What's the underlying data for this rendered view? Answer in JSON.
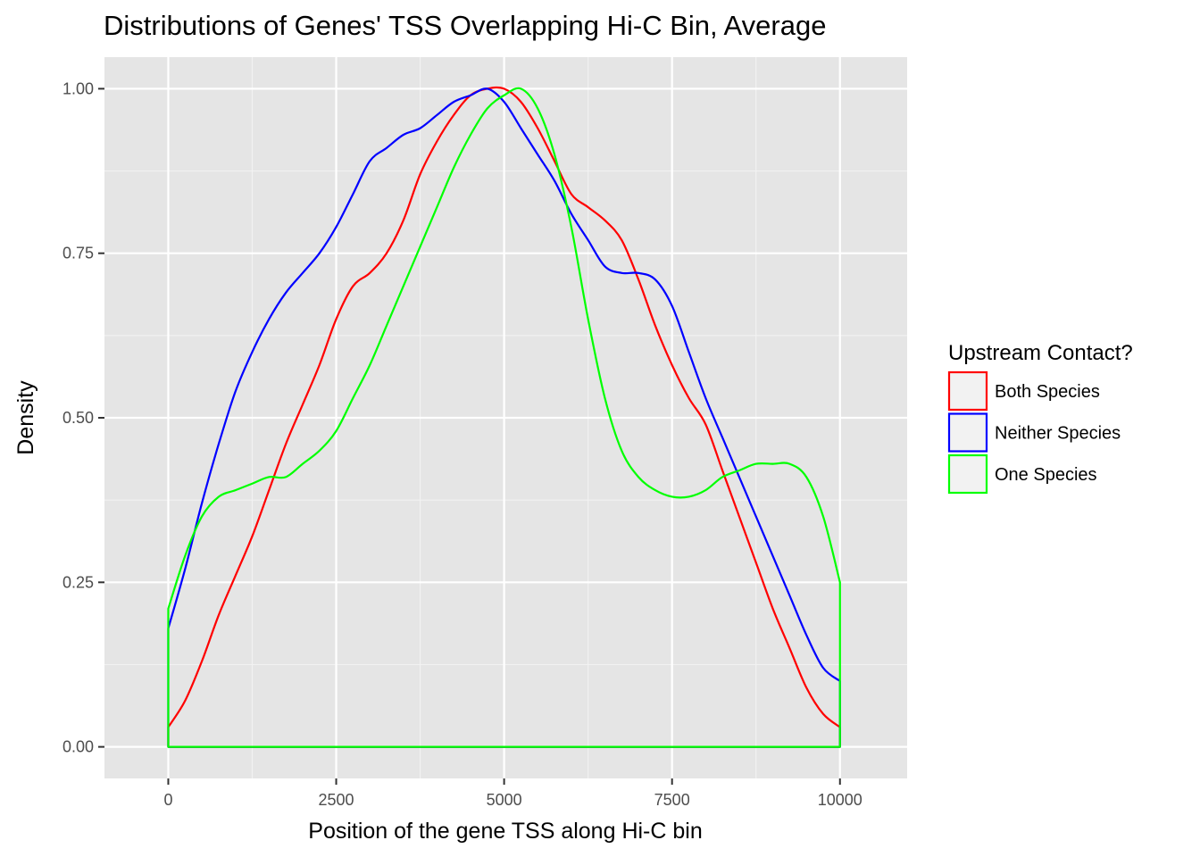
{
  "chart_data": {
    "type": "line",
    "title": "Distributions of Genes' TSS Overlapping Hi-C Bin, Average",
    "xlabel": "Position of the gene TSS along Hi-C bin",
    "ylabel": "Density",
    "xlim": [
      -950,
      11000
    ],
    "ylim": [
      -0.048,
      1.048
    ],
    "x_ticks": [
      0,
      2500,
      5000,
      7500,
      10000
    ],
    "x_tick_labels": [
      "0",
      "2500",
      "5000",
      "7500",
      "10000"
    ],
    "y_ticks": [
      0,
      0.25,
      0.5,
      0.75,
      1.0
    ],
    "y_tick_labels": [
      "0.00",
      "0.25",
      "0.50",
      "0.75",
      "1.00"
    ],
    "grid": true,
    "background": "#e5e5e5",
    "legend": {
      "title": "Upstream Contact?",
      "position": "right"
    },
    "series": [
      {
        "name": "Both Species",
        "color": "#ff0000",
        "x": [
          0,
          250,
          500,
          750,
          1000,
          1250,
          1500,
          1750,
          2000,
          2250,
          2500,
          2750,
          3000,
          3250,
          3500,
          3750,
          4000,
          4250,
          4500,
          4750,
          5000,
          5250,
          5500,
          5750,
          6000,
          6250,
          6500,
          6750,
          7000,
          7250,
          7500,
          7750,
          8000,
          8250,
          8500,
          8750,
          9000,
          9250,
          9500,
          9750,
          10000
        ],
        "y": [
          0.03,
          0.07,
          0.13,
          0.2,
          0.26,
          0.32,
          0.39,
          0.46,
          0.52,
          0.58,
          0.65,
          0.7,
          0.72,
          0.75,
          0.8,
          0.87,
          0.92,
          0.96,
          0.99,
          1.0,
          1.0,
          0.98,
          0.94,
          0.89,
          0.84,
          0.82,
          0.8,
          0.77,
          0.71,
          0.64,
          0.58,
          0.53,
          0.49,
          0.42,
          0.35,
          0.28,
          0.21,
          0.15,
          0.09,
          0.05,
          0.03
        ]
      },
      {
        "name": "Neither Species",
        "color": "#0000ff",
        "x": [
          0,
          250,
          500,
          750,
          1000,
          1250,
          1500,
          1750,
          2000,
          2250,
          2500,
          2750,
          3000,
          3250,
          3500,
          3750,
          4000,
          4250,
          4500,
          4750,
          5000,
          5250,
          5500,
          5750,
          6000,
          6250,
          6500,
          6750,
          7000,
          7250,
          7500,
          7750,
          8000,
          8250,
          8500,
          8750,
          9000,
          9250,
          9500,
          9750,
          10000
        ],
        "y": [
          0.18,
          0.27,
          0.37,
          0.46,
          0.54,
          0.6,
          0.65,
          0.69,
          0.72,
          0.75,
          0.79,
          0.84,
          0.89,
          0.91,
          0.93,
          0.94,
          0.96,
          0.98,
          0.99,
          1.0,
          0.98,
          0.94,
          0.9,
          0.86,
          0.81,
          0.77,
          0.73,
          0.72,
          0.72,
          0.71,
          0.67,
          0.6,
          0.53,
          0.47,
          0.41,
          0.35,
          0.29,
          0.23,
          0.17,
          0.12,
          0.1
        ]
      },
      {
        "name": "One Species",
        "color": "#00ff00",
        "x": [
          0,
          250,
          500,
          750,
          1000,
          1250,
          1500,
          1750,
          2000,
          2250,
          2500,
          2750,
          3000,
          3250,
          3500,
          3750,
          4000,
          4250,
          4500,
          4750,
          5000,
          5250,
          5500,
          5750,
          6000,
          6250,
          6500,
          6750,
          7000,
          7250,
          7500,
          7750,
          8000,
          8250,
          8500,
          8750,
          9000,
          9250,
          9500,
          9750,
          10000
        ],
        "y": [
          0.21,
          0.29,
          0.35,
          0.38,
          0.39,
          0.4,
          0.41,
          0.41,
          0.43,
          0.45,
          0.48,
          0.53,
          0.58,
          0.64,
          0.7,
          0.76,
          0.82,
          0.88,
          0.93,
          0.97,
          0.99,
          1.0,
          0.97,
          0.9,
          0.79,
          0.65,
          0.53,
          0.45,
          0.41,
          0.39,
          0.38,
          0.38,
          0.39,
          0.41,
          0.42,
          0.43,
          0.43,
          0.43,
          0.41,
          0.35,
          0.25
        ]
      }
    ]
  }
}
